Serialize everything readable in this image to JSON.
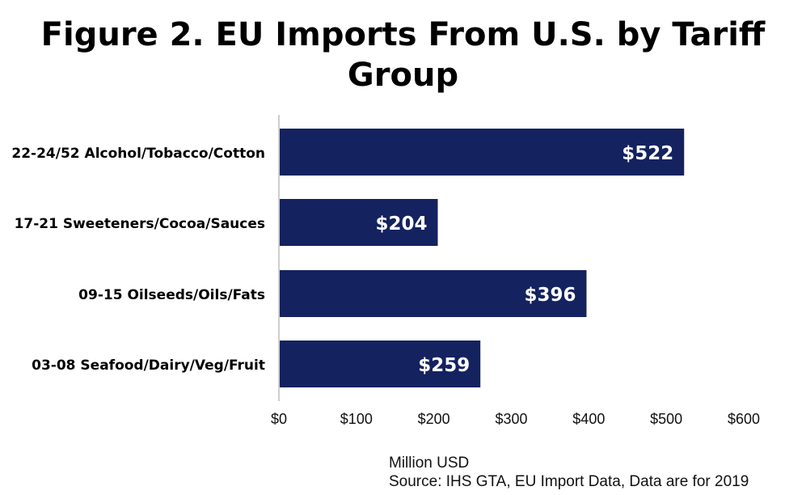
{
  "chart_data": {
    "type": "bar",
    "orientation": "horizontal",
    "title_lines": [
      "Figure 2. EU Imports From U.S. by Tariff",
      "Group"
    ],
    "categories": [
      "22-24/52 Alcohol/Tobacco/Cotton",
      "17-21 Sweeteners/Cocoa/Sauces",
      "09-15 Oilseeds/Oils/Fats",
      "03-08 Seafood/Dairy/Veg/Fruit"
    ],
    "values": [
      522,
      204,
      396,
      259
    ],
    "value_labels": [
      "$522",
      "$204",
      "$396",
      "$259"
    ],
    "xlim": [
      0,
      600
    ],
    "x_ticks": [
      0,
      100,
      200,
      300,
      400,
      500,
      600
    ],
    "x_tick_labels": [
      "$0",
      "$100",
      "$200",
      "$300",
      "$400",
      "$500",
      "$600"
    ],
    "grid": false,
    "bar_color": "#14225f",
    "label_color": "#ffffff"
  },
  "notes": {
    "unit": "Million USD",
    "source": "Source: IHS GTA, EU Import Data, Data are for 2019"
  }
}
